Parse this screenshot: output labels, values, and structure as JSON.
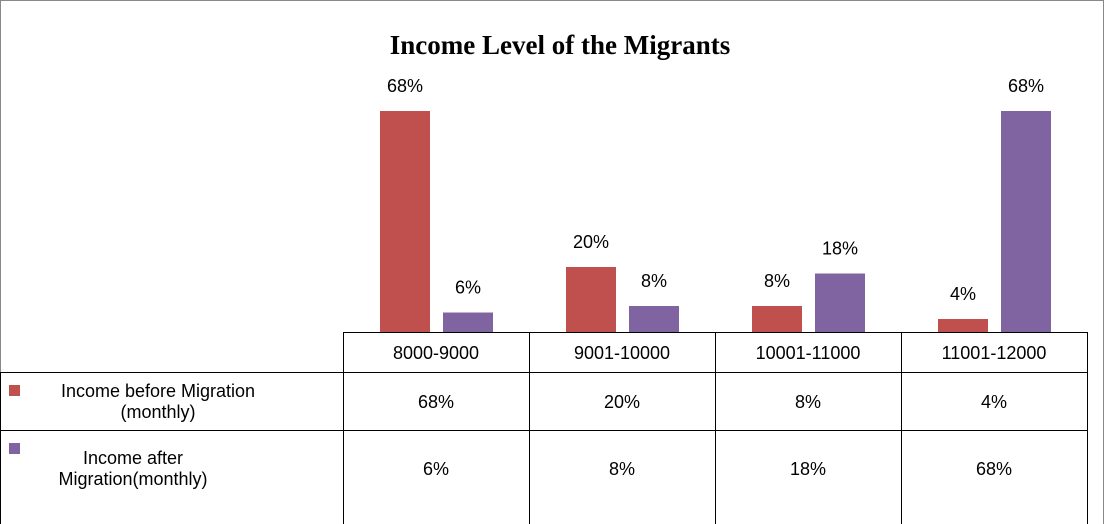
{
  "chart_data": {
    "type": "bar",
    "title": "Income Level of the Migrants",
    "categories": [
      "8000-9000",
      "9001-10000",
      "10001-11000",
      "11001-12000"
    ],
    "series": [
      {
        "name": "Income before Migration (monthly)",
        "color": "#c0504d",
        "values": [
          68,
          20,
          8,
          4
        ],
        "value_labels": [
          "68%",
          "20%",
          "8%",
          "4%"
        ]
      },
      {
        "name": "Income after Migration(monthly)",
        "color": "#8064a2",
        "values": [
          6,
          8,
          18,
          68
        ],
        "value_labels": [
          "6%",
          "8%",
          "18%",
          "68%"
        ]
      }
    ]
  }
}
